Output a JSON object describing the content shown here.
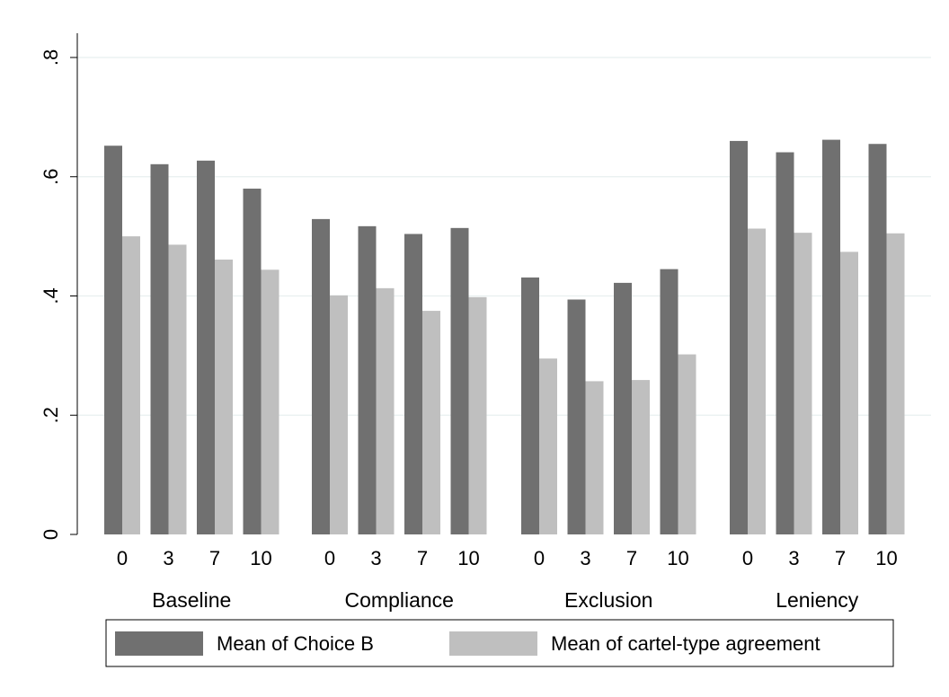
{
  "chart_data": {
    "type": "bar",
    "groups": [
      "Baseline",
      "Compliance",
      "Exclusion",
      "Leniency"
    ],
    "categories": [
      "0",
      "3",
      "7",
      "10"
    ],
    "series": [
      {
        "name": "Mean of Choice B",
        "color": "#707070",
        "values": [
          [
            0.652,
            0.621,
            0.627,
            0.58
          ],
          [
            0.529,
            0.517,
            0.504,
            0.514
          ],
          [
            0.431,
            0.394,
            0.422,
            0.445
          ],
          [
            0.66,
            0.641,
            0.662,
            0.655
          ]
        ]
      },
      {
        "name": "Mean of cartel-type agreement",
        "color": "#bfbfbf",
        "values": [
          [
            0.5,
            0.486,
            0.461,
            0.444
          ],
          [
            0.401,
            0.413,
            0.375,
            0.398
          ],
          [
            0.295,
            0.257,
            0.259,
            0.302
          ],
          [
            0.513,
            0.506,
            0.474,
            0.505
          ]
        ]
      }
    ],
    "yticks": [
      {
        "value": 0,
        "label": "0"
      },
      {
        "value": 0.2,
        "label": ".2"
      },
      {
        "value": 0.4,
        "label": ".4"
      },
      {
        "value": 0.6,
        "label": ".6"
      },
      {
        "value": 0.8,
        "label": ".8"
      }
    ],
    "ylim": [
      0,
      0.84
    ],
    "grid": true,
    "legend_position": "bottom"
  }
}
